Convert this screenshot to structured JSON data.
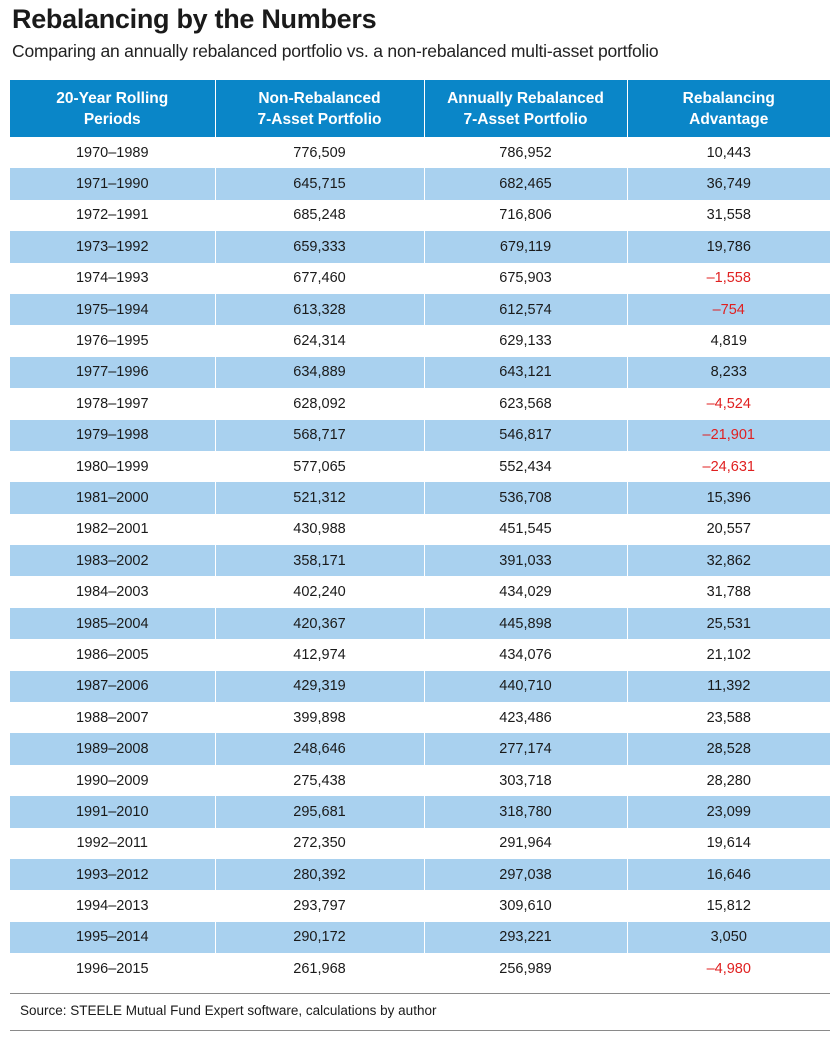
{
  "title": "Rebalancing by the Numbers",
  "subtitle": "Comparing an annually rebalanced portfolio vs. a non-rebalanced multi-asset portfolio",
  "source": "Source: STEELE Mutual Fund Expert software, calculations by author",
  "colors": {
    "header": "#0a86c8",
    "stripe": "#a9d1ef",
    "negative": "#e02020"
  },
  "chart_data": {
    "type": "table",
    "columns": [
      [
        "20-Year Rolling",
        "Periods"
      ],
      [
        "Non-Rebalanced",
        "7-Asset Portfolio"
      ],
      [
        "Annually Rebalanced",
        "7-Asset Portfolio"
      ],
      [
        "Rebalancing",
        "Advantage"
      ]
    ],
    "rows": [
      [
        "1970–1989",
        "776,509",
        "786,952",
        "10,443"
      ],
      [
        "1971–1990",
        "645,715",
        "682,465",
        "36,749"
      ],
      [
        "1972–1991",
        "685,248",
        "716,806",
        "31,558"
      ],
      [
        "1973–1992",
        "659,333",
        "679,119",
        "19,786"
      ],
      [
        "1974–1993",
        "677,460",
        "675,903",
        "–1,558"
      ],
      [
        "1975–1994",
        "613,328",
        "612,574",
        "–754"
      ],
      [
        "1976–1995",
        "624,314",
        "629,133",
        "4,819"
      ],
      [
        "1977–1996",
        "634,889",
        "643,121",
        "8,233"
      ],
      [
        "1978–1997",
        "628,092",
        "623,568",
        "–4,524"
      ],
      [
        "1979–1998",
        "568,717",
        "546,817",
        "–21,901"
      ],
      [
        "1980–1999",
        "577,065",
        "552,434",
        "–24,631"
      ],
      [
        "1981–2000",
        "521,312",
        "536,708",
        "15,396"
      ],
      [
        "1982–2001",
        "430,988",
        "451,545",
        "20,557"
      ],
      [
        "1983–2002",
        "358,171",
        "391,033",
        "32,862"
      ],
      [
        "1984–2003",
        "402,240",
        "434,029",
        "31,788"
      ],
      [
        "1985–2004",
        "420,367",
        "445,898",
        "25,531"
      ],
      [
        "1986–2005",
        "412,974",
        "434,076",
        "21,102"
      ],
      [
        "1987–2006",
        "429,319",
        "440,710",
        "11,392"
      ],
      [
        "1988–2007",
        "399,898",
        "423,486",
        "23,588"
      ],
      [
        "1989–2008",
        "248,646",
        "277,174",
        "28,528"
      ],
      [
        "1990–2009",
        "275,438",
        "303,718",
        "28,280"
      ],
      [
        "1991–2010",
        "295,681",
        "318,780",
        "23,099"
      ],
      [
        "1992–2011",
        "272,350",
        "291,964",
        "19,614"
      ],
      [
        "1993–2012",
        "280,392",
        "297,038",
        "16,646"
      ],
      [
        "1994–2013",
        "293,797",
        "309,610",
        "15,812"
      ],
      [
        "1995–2014",
        "290,172",
        "293,221",
        "3,050"
      ],
      [
        "1996–2015",
        "261,968",
        "256,989",
        "–4,980"
      ]
    ]
  }
}
